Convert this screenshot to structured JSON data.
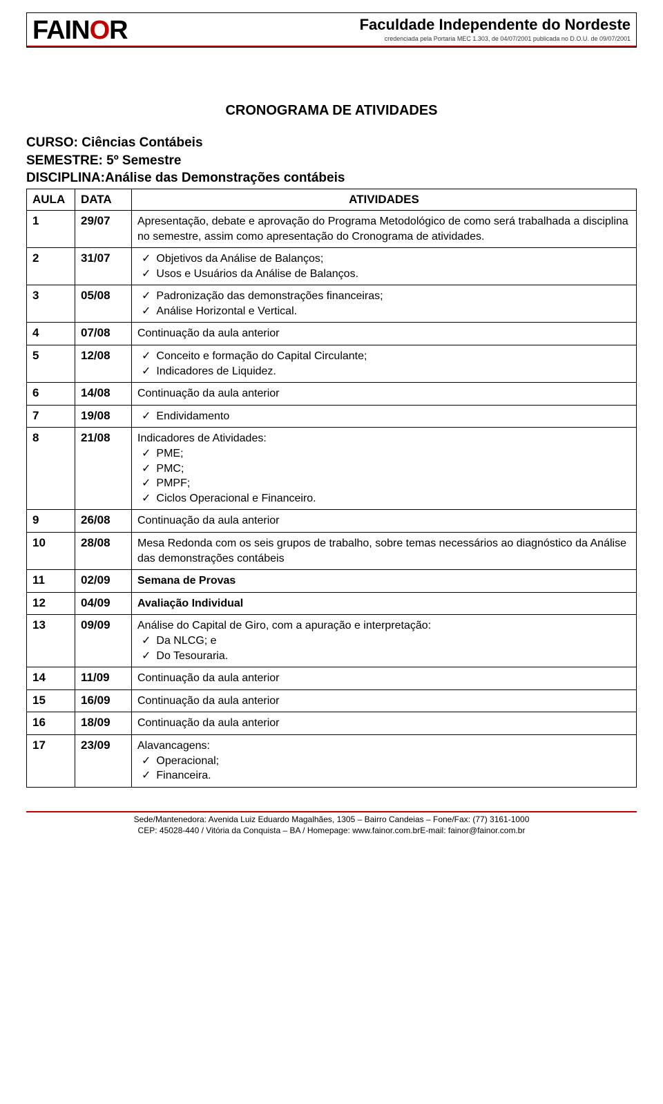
{
  "header": {
    "logo_text_main": "FAIN",
    "logo_text_o": "O",
    "logo_text_r": "R",
    "institution": "Faculdade Independente do Nordeste",
    "subtitle": "credenciada pela Portaria MEC 1.303, de 04/07/2001 publicada no D.O.U. de 09/07/2001"
  },
  "doc_title": "CRONOGRAMA DE ATIVIDADES",
  "course": {
    "curso_label": "CURSO:",
    "curso_value": "Ciências Contábeis",
    "semestre_label": "SEMESTRE:",
    "semestre_value": "5º Semestre",
    "disciplina_label": "DISCIPLINA:",
    "disciplina_value": "Análise das Demonstrações contábeis"
  },
  "table": {
    "headers": {
      "aula": "AULA",
      "data": "DATA",
      "atividades": "ATIVIDADES"
    },
    "rows": [
      {
        "n": "1",
        "date": "29/07",
        "intro": "Apresentação, debate e aprovação do Programa Metodológico de como será trabalhada a disciplina no semestre, assim como apresentação do Cronograma de atividades.",
        "items": []
      },
      {
        "n": "2",
        "date": "31/07",
        "intro": "",
        "items": [
          "Objetivos da Análise de Balanços;",
          "Usos e Usuários da Análise de Balanços."
        ]
      },
      {
        "n": "3",
        "date": "05/08",
        "intro": "",
        "items": [
          "Padronização das demonstrações financeiras;",
          "Análise Horizontal e Vertical."
        ]
      },
      {
        "n": "4",
        "date": "07/08",
        "intro": "Continuação da aula anterior",
        "items": []
      },
      {
        "n": "5",
        "date": "12/08",
        "intro": "",
        "items": [
          "Conceito e formação do Capital Circulante;",
          "Indicadores de Liquidez."
        ]
      },
      {
        "n": "6",
        "date": "14/08",
        "intro": "Continuação da aula anterior",
        "items": []
      },
      {
        "n": "7",
        "date": "19/08",
        "intro": "",
        "items": [
          "Endividamento"
        ]
      },
      {
        "n": "8",
        "date": "21/08",
        "intro": "Indicadores de Atividades:",
        "items": [
          "PME;",
          "PMC;",
          "PMPF;",
          "Ciclos Operacional e Financeiro."
        ]
      },
      {
        "n": "9",
        "date": "26/08",
        "intro": "Continuação da aula anterior",
        "items": []
      },
      {
        "n": "10",
        "date": "28/08",
        "intro": "Mesa Redonda com os seis grupos de trabalho, sobre temas necessários ao diagnóstico da Análise das demonstrações contábeis",
        "items": []
      },
      {
        "n": "11",
        "date": "02/09",
        "intro": "Semana de Provas",
        "items": [],
        "bold": true
      },
      {
        "n": "12",
        "date": "04/09",
        "intro": "Avaliação Individual",
        "items": [],
        "bold": true
      },
      {
        "n": "13",
        "date": "09/09",
        "intro": "Análise do Capital de Giro, com a apuração e interpretação:",
        "items": [
          "Da NLCG; e",
          "Do Tesouraria."
        ]
      },
      {
        "n": "14",
        "date": "11/09",
        "intro": "Continuação da aula anterior",
        "items": []
      },
      {
        "n": "15",
        "date": "16/09",
        "intro": "Continuação da aula anterior",
        "items": []
      },
      {
        "n": "16",
        "date": "18/09",
        "intro": "Continuação da aula anterior",
        "items": []
      },
      {
        "n": "17",
        "date": "23/09",
        "intro": "Alavancagens:",
        "items": [
          "Operacional;",
          "Financeira."
        ]
      }
    ]
  },
  "footer": {
    "line1": "Sede/Mantenedora: Avenida Luiz Eduardo Magalhães, 1305 – Bairro Candeias – Fone/Fax: (77) 3161-1000",
    "line2": "CEP: 45028-440 / Vitória da Conquista – BA / Homepage: www.fainor.com.brE-mail: fainor@fainor.com.br"
  },
  "colors": {
    "accent_red": "#c00000",
    "text": "#000000",
    "bg": "#ffffff"
  }
}
